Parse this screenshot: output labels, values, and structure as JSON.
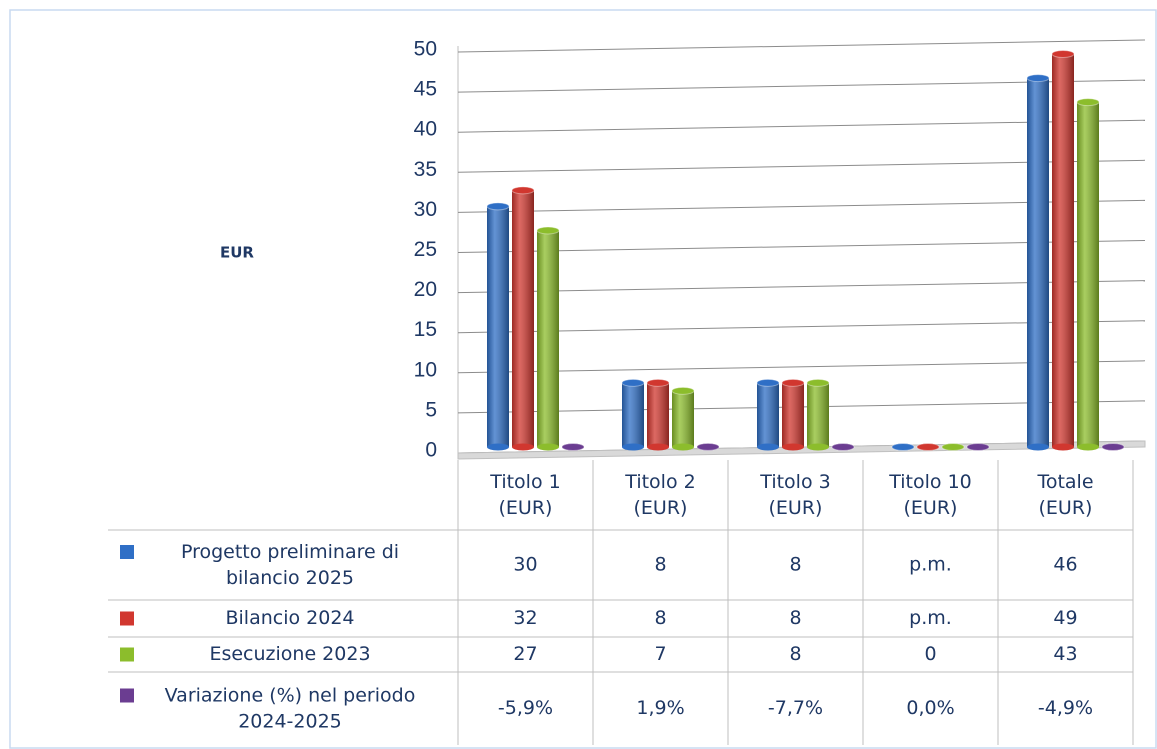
{
  "chart_data": {
    "type": "bar",
    "y_label": "EUR",
    "categories": [
      "Titolo 1\n(EUR)",
      "Titolo 2\n(EUR)",
      "Titolo 3\n(EUR)",
      "Titolo 10\n(EUR)",
      "Totale\n(EUR)"
    ],
    "series": [
      {
        "name": "Progetto preliminare di\nbilancio 2025",
        "color": "#2f6fc6",
        "values": [
          30,
          8,
          8,
          0,
          46
        ],
        "value_labels": [
          "30",
          "8",
          "8",
          "p.m.",
          "46"
        ]
      },
      {
        "name": "Bilancio 2024",
        "color": "#d1372f",
        "values": [
          32,
          8,
          8,
          0,
          49
        ],
        "value_labels": [
          "32",
          "8",
          "8",
          "p.m.",
          "49"
        ]
      },
      {
        "name": "Esecuzione 2023",
        "color": "#8cbd2c",
        "values": [
          27,
          7,
          8,
          0,
          43
        ],
        "value_labels": [
          "27",
          "7",
          "8",
          "0",
          "43"
        ]
      },
      {
        "name": "Variazione (%) nel periodo\n2024-2025",
        "color": "#6b3d91",
        "values": [
          -0.059,
          0.019,
          -0.077,
          0.0,
          -0.049
        ],
        "value_labels": [
          "-5,9%",
          "1,9%",
          "-7,7%",
          "0,0%",
          "-4,9%"
        ]
      }
    ],
    "ylim": [
      0,
      50
    ],
    "yticks": [
      0,
      5,
      10,
      15,
      20,
      25,
      30,
      35,
      40,
      45,
      50
    ],
    "grid": true
  }
}
